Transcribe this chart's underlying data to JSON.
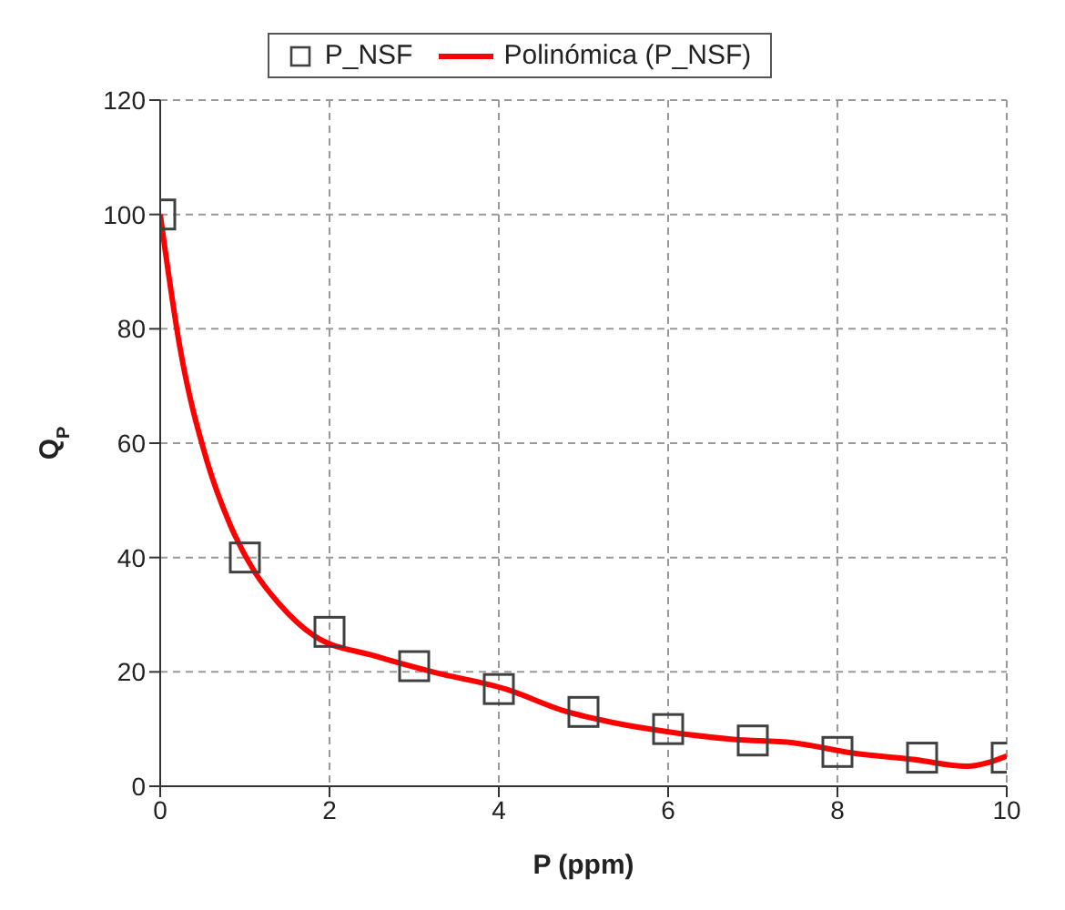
{
  "chart_data": {
    "type": "scatter",
    "xlabel": "P (ppm)",
    "ylabel": "Q$_{P}$",
    "xlim": [
      0,
      10
    ],
    "xticks": [
      0,
      2,
      4,
      6,
      8,
      10
    ],
    "ylim": [
      0,
      120
    ],
    "yticks": [
      0,
      20,
      40,
      60,
      80,
      100,
      120
    ],
    "grid": true,
    "legend": "top",
    "series": [
      {
        "name": "P_NSF",
        "marker": "square",
        "color": "#404040",
        "x": [
          0,
          1,
          2,
          3,
          4,
          5,
          6,
          7,
          8,
          9,
          10
        ],
        "values": [
          100,
          40,
          27,
          21,
          17,
          13,
          10,
          8,
          6,
          5,
          5
        ]
      },
      {
        "name": "Polinómica (P_NSF)",
        "type": "line",
        "marker": "none",
        "color": "#ff0000",
        "x": [
          0,
          0.23,
          0.55,
          0.83,
          1.12,
          1.4,
          1.82,
          2.53,
          3.24,
          4.08,
          4.79,
          5.36,
          6.06,
          6.77,
          7.48,
          8.18,
          8.89,
          9.53,
          10
        ],
        "values": [
          100,
          77,
          57,
          45.6,
          37.4,
          32,
          26.3,
          22.8,
          19.9,
          17,
          13.1,
          11.1,
          9.4,
          8.2,
          7.6,
          5.8,
          4.7,
          3.5,
          5.3
        ]
      }
    ]
  }
}
